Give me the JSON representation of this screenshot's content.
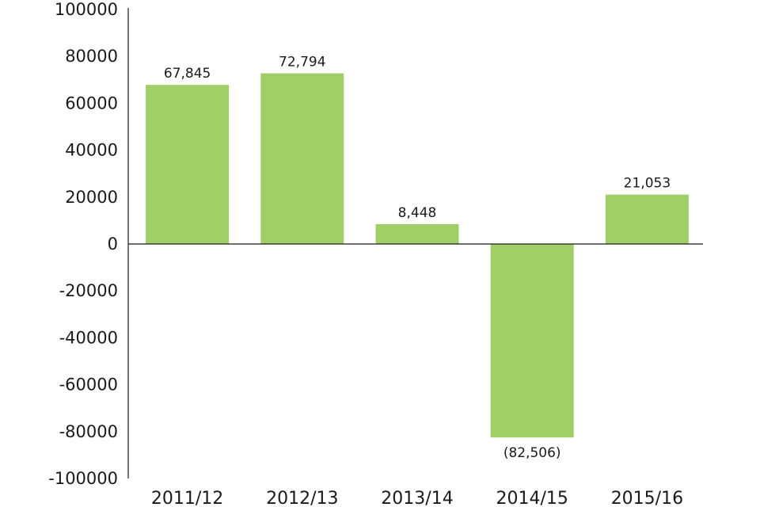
{
  "chart_data": {
    "type": "bar",
    "categories": [
      "2011/12",
      "2012/13",
      "2013/14",
      "2014/15",
      "2015/16"
    ],
    "values": [
      67845,
      72794,
      8448,
      -82506,
      21053
    ],
    "data_labels": [
      "67,845",
      "72,794",
      "8,448",
      "(82,506)",
      "21,053"
    ],
    "title": "",
    "xlabel": "",
    "ylabel": "",
    "ylim": [
      -100000,
      100000
    ],
    "yticks": [
      100000,
      80000,
      60000,
      40000,
      20000,
      0,
      -20000,
      -40000,
      -60000,
      -80000,
      -100000
    ],
    "ytick_labels": [
      "100000",
      "80000",
      "60000",
      "40000",
      "20000",
      "0",
      "-20000",
      "-40000",
      "-60000",
      "-80000",
      "-100000"
    ],
    "grid": false,
    "bar_color": "#a0cf67",
    "axis_color": "#1a1a1a"
  }
}
